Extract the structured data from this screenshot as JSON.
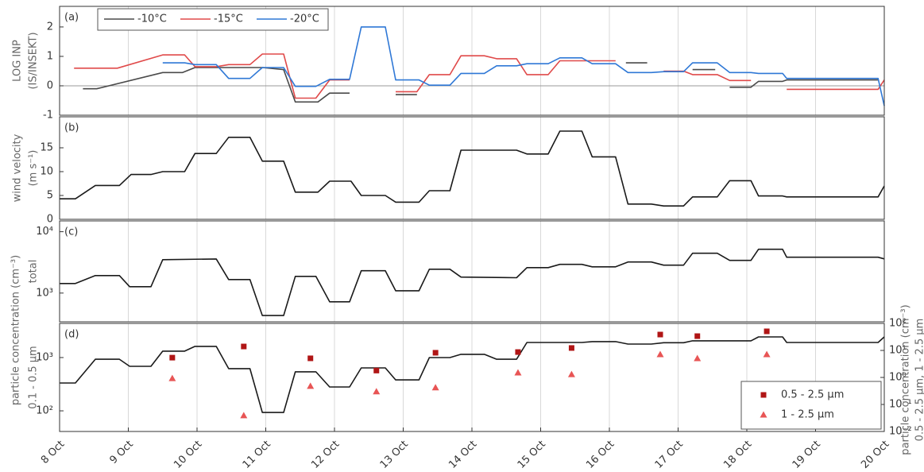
{
  "chart_data": [
    {
      "type": "line",
      "panel_label": "(a)",
      "ylabel": [
        "LOG INP",
        "(IS/INSEKT)"
      ],
      "xlim": [
        8,
        20
      ],
      "xticks": [
        8,
        9,
        10,
        11,
        12,
        13,
        14,
        15,
        16,
        17,
        18,
        19,
        20
      ],
      "ylim": [
        -1,
        2.7
      ],
      "yticks": [
        -1,
        0,
        1,
        2
      ],
      "hline": 0,
      "legend": "upper left",
      "series": [
        {
          "name": "-10°C",
          "color": "#4a4a4a",
          "x": [
            8.34,
            8.54,
            9.5,
            9.79,
            9.97,
            10.95,
            11.26,
            11.43,
            11.76,
            11.93,
            12.22,
            null,
            12.89,
            13.2,
            null,
            16.24,
            16.55,
            null,
            17.21,
            17.54,
            null,
            17.75,
            18.06,
            18.17,
            18.52,
            18.58,
            19.91
          ],
          "values": [
            -0.1,
            -0.1,
            0.45,
            0.45,
            0.62,
            0.62,
            0.55,
            -0.55,
            -0.55,
            -0.25,
            -0.25,
            null,
            -0.3,
            -0.3,
            null,
            0.78,
            0.78,
            null,
            0.55,
            0.55,
            null,
            -0.05,
            -0.05,
            0.15,
            0.15,
            0.2,
            0.2
          ]
        },
        {
          "name": "-15°C",
          "color": "#e04a4a",
          "x": [
            8.21,
            8.84,
            9.5,
            9.82,
            9.97,
            10.28,
            10.46,
            10.77,
            10.95,
            11.26,
            11.43,
            11.73,
            11.93,
            12.22,
            null,
            12.89,
            13.2,
            13.38,
            13.68,
            13.84,
            14.18,
            14.36,
            14.65,
            14.8,
            15.11,
            15.28,
            15.6,
            15.75,
            16.09,
            null,
            16.79,
            17.08,
            17.21,
            17.57,
            17.75,
            18.06,
            null,
            18.58,
            19.91,
            20.0
          ],
          "values": [
            0.6,
            0.6,
            1.05,
            1.05,
            0.65,
            0.65,
            0.72,
            0.72,
            1.08,
            1.08,
            -0.42,
            -0.42,
            0.2,
            0.2,
            null,
            -0.2,
            -0.2,
            0.38,
            0.38,
            1.02,
            1.02,
            0.92,
            0.92,
            0.38,
            0.38,
            0.85,
            0.85,
            0.85,
            0.85,
            null,
            0.5,
            0.5,
            0.38,
            0.38,
            0.18,
            0.18,
            null,
            -0.12,
            -0.12,
            0.2
          ]
        },
        {
          "name": "-20°C",
          "color": "#2f78d6",
          "x": [
            9.5,
            9.82,
            9.97,
            10.28,
            10.46,
            10.77,
            10.95,
            11.26,
            11.43,
            11.73,
            11.93,
            12.22,
            12.39,
            12.74,
            12.89,
            13.23,
            13.38,
            13.68,
            13.84,
            14.18,
            14.36,
            14.65,
            14.8,
            15.11,
            15.28,
            15.6,
            15.75,
            16.09,
            16.27,
            16.61,
            16.79,
            17.08,
            17.21,
            17.57,
            17.75,
            18.06,
            18.17,
            18.52,
            18.58,
            19.91,
            20.0
          ],
          "values": [
            0.78,
            0.78,
            0.72,
            0.72,
            0.25,
            0.25,
            0.62,
            0.62,
            -0.02,
            -0.02,
            0.22,
            0.22,
            2.0,
            2.0,
            0.2,
            0.2,
            0.02,
            0.02,
            0.42,
            0.42,
            0.68,
            0.68,
            0.75,
            0.75,
            0.95,
            0.95,
            0.75,
            0.75,
            0.45,
            0.45,
            0.48,
            0.48,
            0.78,
            0.78,
            0.45,
            0.45,
            0.42,
            0.42,
            0.25,
            0.25,
            -0.68
          ]
        }
      ]
    },
    {
      "type": "line",
      "panel_label": "(b)",
      "ylabel": [
        "wind velocity",
        "(m s⁻¹)"
      ],
      "xlim": [
        8,
        20
      ],
      "xticks": [
        8,
        9,
        10,
        11,
        12,
        13,
        14,
        15,
        16,
        17,
        18,
        19,
        20
      ],
      "ylim": [
        0,
        21.5
      ],
      "yticks": [
        0,
        5,
        10,
        15
      ],
      "series": [
        {
          "color": "#1a1a1a",
          "x": [
            8.0,
            8.23,
            8.52,
            8.87,
            9.04,
            9.33,
            9.5,
            9.82,
            9.97,
            10.28,
            10.46,
            10.77,
            10.95,
            11.26,
            11.43,
            11.76,
            11.93,
            12.24,
            12.39,
            12.74,
            12.89,
            13.23,
            13.38,
            13.68,
            13.84,
            14.65,
            14.8,
            15.11,
            15.28,
            15.6,
            15.75,
            16.09,
            16.27,
            16.61,
            16.79,
            17.08,
            17.21,
            17.57,
            17.75,
            18.06,
            18.17,
            18.52,
            18.58,
            19.91,
            20.0
          ],
          "values": [
            4.3,
            4.3,
            7.1,
            7.1,
            9.4,
            9.4,
            10,
            10,
            13.8,
            13.8,
            17.2,
            17.2,
            12.2,
            12.2,
            5.7,
            5.7,
            8,
            8,
            5,
            5,
            3.6,
            3.6,
            6,
            6,
            14.5,
            14.5,
            13.7,
            13.7,
            18.5,
            18.5,
            13.1,
            13.1,
            3.2,
            3.2,
            2.8,
            2.8,
            4.7,
            4.7,
            8.1,
            8.1,
            4.9,
            4.9,
            4.7,
            4.7,
            7
          ]
        }
      ]
    },
    {
      "type": "line",
      "panel_label": "(c)",
      "ylabel": [
        "total"
      ],
      "xlim": [
        8,
        20
      ],
      "xticks": [
        8,
        9,
        10,
        11,
        12,
        13,
        14,
        15,
        16,
        17,
        18,
        19,
        20
      ],
      "ylog": true,
      "ylim": [
        340,
        15000
      ],
      "yticks": [
        {
          "value": 1000,
          "label": "10³"
        },
        {
          "value": 10000,
          "label": "10⁴"
        }
      ],
      "series": [
        {
          "color": "#1a1a1a",
          "x": [
            8.0,
            8.23,
            8.52,
            8.87,
            9.02,
            9.33,
            9.5,
            10.28,
            10.46,
            10.77,
            10.95,
            11.26,
            11.43,
            11.73,
            11.93,
            12.22,
            12.39,
            12.74,
            12.89,
            13.23,
            13.38,
            13.68,
            13.84,
            14.65,
            14.8,
            15.11,
            15.28,
            15.6,
            15.75,
            16.09,
            16.27,
            16.61,
            16.79,
            17.08,
            17.21,
            17.57,
            17.75,
            18.06,
            18.17,
            18.52,
            18.58,
            19.91,
            20.0
          ],
          "values": [
            1430,
            1430,
            1930,
            1930,
            1270,
            1270,
            3500,
            3600,
            1660,
            1660,
            430,
            430,
            1870,
            1870,
            720,
            720,
            2310,
            2310,
            1090,
            1090,
            2450,
            2450,
            1820,
            1780,
            2600,
            2600,
            2940,
            2940,
            2680,
            2680,
            3210,
            3210,
            2850,
            2850,
            4460,
            4460,
            3410,
            3410,
            5180,
            5180,
            3840,
            3840,
            3610
          ]
        }
      ]
    },
    {
      "type": "line",
      "panel_label": "(d)",
      "ylabel": [
        "0.1 - 0.5 µm"
      ],
      "ylabel_outer": "particle concentration (cm⁻³)",
      "y2label": [
        "particle concentration (cm⁻³)",
        "0.5 - 2.5 µm, 1 - 2.5 µm"
      ],
      "xlim": [
        8,
        20
      ],
      "xticks": [
        {
          "value": 8,
          "label": "8 Oct"
        },
        {
          "value": 9,
          "label": "9 Oct"
        },
        {
          "value": 10,
          "label": "10 Oct"
        },
        {
          "value": 11,
          "label": "11 Oct"
        },
        {
          "value": 12,
          "label": "12 Oct"
        },
        {
          "value": 13,
          "label": "13 Oct"
        },
        {
          "value": 14,
          "label": "14 Oct"
        },
        {
          "value": 15,
          "label": "15 Oct"
        },
        {
          "value": 16,
          "label": "16 Oct"
        },
        {
          "value": 17,
          "label": "17 Oct"
        },
        {
          "value": 18,
          "label": "18 Oct"
        },
        {
          "value": 19,
          "label": "19 Oct"
        },
        {
          "value": 20,
          "label": "20 Oct"
        }
      ],
      "ylog": true,
      "ylim": [
        41,
        4370
      ],
      "yticks": [
        {
          "value": 100,
          "label": "10²"
        },
        {
          "value": 1000,
          "label": "10³"
        }
      ],
      "y2lim": [
        0.01,
        100
      ],
      "y2ticks": [
        {
          "value": 0.01,
          "label": "10⁻²"
        },
        {
          "value": 0.1,
          "label": "10⁻¹"
        },
        {
          "value": 1,
          "label": "10⁰"
        },
        {
          "value": 10,
          "label": "10¹"
        },
        {
          "value": 100,
          "label": "10²"
        }
      ],
      "legend": "lower right",
      "series": [
        {
          "color": "#1a1a1a",
          "x": [
            8.0,
            8.23,
            8.52,
            8.87,
            9.02,
            9.33,
            9.5,
            9.82,
            9.97,
            10.28,
            10.46,
            10.77,
            10.95,
            11.26,
            11.43,
            11.73,
            11.93,
            12.22,
            12.39,
            12.74,
            12.89,
            13.23,
            13.38,
            13.68,
            13.84,
            14.18,
            14.36,
            14.65,
            14.8,
            15.6,
            15.75,
            16.09,
            16.27,
            16.61,
            16.79,
            17.08,
            17.21,
            18.06,
            18.17,
            18.52,
            18.58,
            19.91,
            20.0
          ],
          "values": [
            333,
            333,
            930,
            930,
            685,
            685,
            1320,
            1320,
            1620,
            1620,
            620,
            620,
            93,
            93,
            540,
            540,
            280,
            280,
            640,
            640,
            380,
            380,
            1000,
            1000,
            1150,
            1150,
            930,
            930,
            1920,
            1920,
            1990,
            1990,
            1790,
            1790,
            1900,
            1900,
            2060,
            2060,
            2440,
            2440,
            1920,
            1920,
            2440
          ]
        },
        {
          "name": "0.5 - 2.5 µm",
          "type": "scatter",
          "marker": "square",
          "axis": "y2",
          "color": "#b01515",
          "x": [
            9.64,
            10.68,
            11.65,
            12.61,
            13.47,
            14.67,
            15.45,
            16.74,
            17.28,
            18.29
          ],
          "values": [
            5.4,
            14,
            5.1,
            1.8,
            8.2,
            8.7,
            12.3,
            38.7,
            33.8,
            50.9
          ]
        },
        {
          "name": "1 - 2.5 µm",
          "type": "scatter",
          "marker": "triangle",
          "axis": "y2",
          "color": "#e85555",
          "x": [
            9.64,
            10.68,
            11.65,
            12.61,
            13.47,
            14.67,
            15.45,
            16.74,
            17.28,
            18.29
          ],
          "values": [
            0.93,
            0.039,
            0.48,
            0.3,
            0.42,
            1.5,
            1.3,
            7.1,
            5.1,
            7.1
          ]
        }
      ]
    }
  ]
}
